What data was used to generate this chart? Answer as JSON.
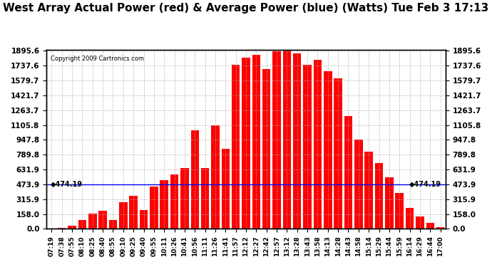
{
  "title": "West Array Actual Power (red) & Average Power (blue) (Watts) Tue Feb 3 17:13",
  "copyright": "Copyright 2009 Cartronics.com",
  "avg_power": 474.19,
  "avg_label": "◆474.19",
  "y_ticks": [
    0.0,
    158.0,
    315.9,
    473.9,
    631.9,
    789.8,
    947.8,
    1105.8,
    1263.7,
    1421.7,
    1579.7,
    1737.6,
    1895.6
  ],
  "y_max": 1895.6,
  "bar_color": "#FF0000",
  "line_color": "#0000FF",
  "background_color": "#FFFFFF",
  "grid_color": "#AAAAAA",
  "title_fontsize": 11,
  "x_labels": [
    "07:19",
    "07:38",
    "07:55",
    "08:10",
    "08:25",
    "08:40",
    "08:55",
    "09:10",
    "09:25",
    "09:40",
    "09:55",
    "10:11",
    "10:26",
    "10:41",
    "10:56",
    "11:11",
    "11:26",
    "11:41",
    "11:57",
    "12:12",
    "12:27",
    "12:42",
    "12:57",
    "13:12",
    "13:28",
    "13:43",
    "13:58",
    "14:13",
    "14:28",
    "14:43",
    "14:58",
    "15:14",
    "15:29",
    "15:44",
    "15:59",
    "16:14",
    "16:29",
    "16:44",
    "17:00"
  ],
  "power_vals": [
    3,
    8,
    35,
    95,
    160,
    190,
    95,
    280,
    350,
    200,
    450,
    520,
    580,
    650,
    1050,
    650,
    1100,
    850,
    1750,
    1820,
    1850,
    1700,
    1890,
    1895,
    1870,
    1750,
    1800,
    1680,
    1600,
    1200,
    950,
    820,
    700,
    550,
    380,
    220,
    130,
    65,
    15
  ]
}
